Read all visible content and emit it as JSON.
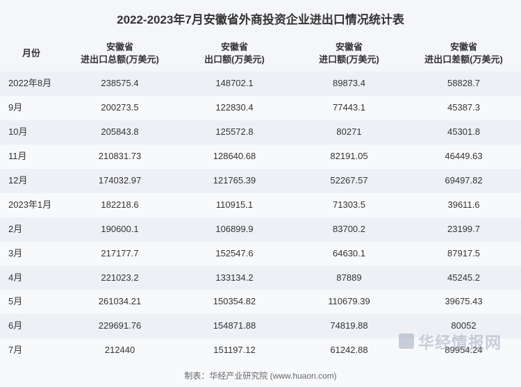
{
  "title": "2022-2023年7月安徽省外商投资企业进出口情况统计表",
  "columns": [
    "月份",
    "安徽省\n进出口总额(万美元)",
    "安徽省\n出口额(万美元)",
    "安徽省\n进口额(万美元)",
    "安徽省\n进出口差额(万美元)"
  ],
  "rows": [
    [
      "2022年8月",
      "238575.4",
      "148702.1",
      "89873.4",
      "58828.7"
    ],
    [
      "9月",
      "200273.5",
      "122830.4",
      "77443.1",
      "45387.3"
    ],
    [
      "10月",
      "205843.8",
      "125572.8",
      "80271",
      "45301.8"
    ],
    [
      "11月",
      "210831.73",
      "128640.68",
      "82191.05",
      "46449.63"
    ],
    [
      "12月",
      "174032.97",
      "121765.39",
      "52267.57",
      "69497.82"
    ],
    [
      "2023年1月",
      "182218.6",
      "110915.1",
      "71303.5",
      "39611.6"
    ],
    [
      "2月",
      "190600.1",
      "106899.9",
      "83700.2",
      "23199.7"
    ],
    [
      "3月",
      "217177.7",
      "152547.6",
      "64630.1",
      "87917.5"
    ],
    [
      "4月",
      "221023.2",
      "133134.2",
      "87889",
      "45245.2"
    ],
    [
      "5月",
      "261034.21",
      "150354.82",
      "110679.39",
      "39675.43"
    ],
    [
      "6月",
      "229691.76",
      "154871.88",
      "74819.88",
      "80052"
    ],
    [
      "7月",
      "212440",
      "151197.12",
      "61242.88",
      "89954.24"
    ]
  ],
  "footer": "制表：华经产业研究院 (www.huaon.com)",
  "watermark": "华经情报网",
  "styling": {
    "title_fontsize": 17,
    "header_fontsize": 13,
    "cell_fontsize": 13,
    "footer_fontsize": 12,
    "title_color": "#333333",
    "text_color": "#333333",
    "footer_color": "#666666",
    "row_odd_bg": "#eef0f5",
    "row_even_bg": "#f8f9fb",
    "header_bg": "#f5f6fa",
    "watermark_color": "rgba(140,150,175,0.45)"
  }
}
